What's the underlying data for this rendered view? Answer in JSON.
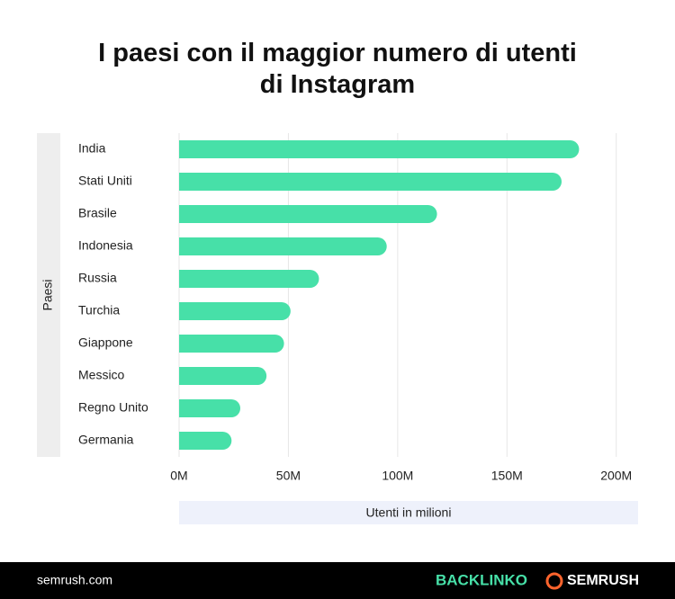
{
  "chart_data": {
    "type": "hbar",
    "title": "I paesi con il maggior numero di utenti di Instagram",
    "y_label": "Paesi",
    "x_label": "Utenti in milioni",
    "categories": [
      "India",
      "Stati Uniti",
      "Brasile",
      "Indonesia",
      "Russia",
      "Turchia",
      "Giappone",
      "Messico",
      "Regno Unito",
      "Germania"
    ],
    "values": [
      183,
      175,
      118,
      95,
      64,
      51,
      48,
      40,
      28,
      24
    ],
    "color": "#47e0a8",
    "xlim": [
      0,
      210
    ],
    "xticks": [
      {
        "value": 0,
        "label": "0M"
      },
      {
        "value": 50,
        "label": "50M"
      },
      {
        "value": 100,
        "label": "100M"
      },
      {
        "value": 150,
        "label": "150M"
      },
      {
        "value": 200,
        "label": "200M"
      }
    ],
    "grid": true
  },
  "footer": {
    "site": "semrush.com",
    "brand1": "BACKLINKO",
    "brand2": "SEMRUSH"
  }
}
